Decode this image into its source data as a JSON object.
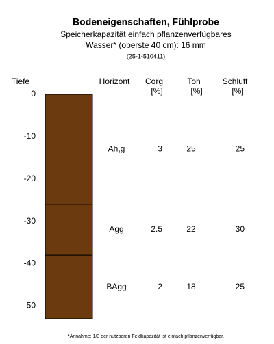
{
  "chart_data": {
    "type": "profile",
    "title": "Bodeneigenschaften, Fühlprobe",
    "subtitle": [
      "Speicherkapazität einfach pflanzenverfügbares",
      "Wasser* (oberste 40 cm): 16 mm"
    ],
    "code": "(25-1-510411)",
    "y_label": "Tiefe",
    "ylim": [
      0,
      -53
    ],
    "yticks": [
      0,
      -10,
      -20,
      -30,
      -40,
      -50
    ],
    "color": "#6b3a0f",
    "horizon_header": "Horizont",
    "horizons": {
      "names": [
        "Ah,g",
        "Agg",
        "BAgg"
      ],
      "top": [
        0,
        -26,
        -38
      ],
      "bottom": [
        -26,
        -38,
        -53
      ]
    },
    "columns": [
      {
        "header": "Corg",
        "unit": "[%]",
        "values": [
          3,
          2.5,
          2
        ]
      },
      {
        "header": "Ton",
        "unit": "[%]",
        "values": [
          25,
          22,
          18
        ]
      },
      {
        "header": "Schluff",
        "unit": "[%]",
        "values": [
          25,
          30,
          25
        ]
      }
    ],
    "footnote": "*Annahme: 1/3 der nutzbaren Feldkapazität ist einfach pflanzenverfügbar."
  }
}
